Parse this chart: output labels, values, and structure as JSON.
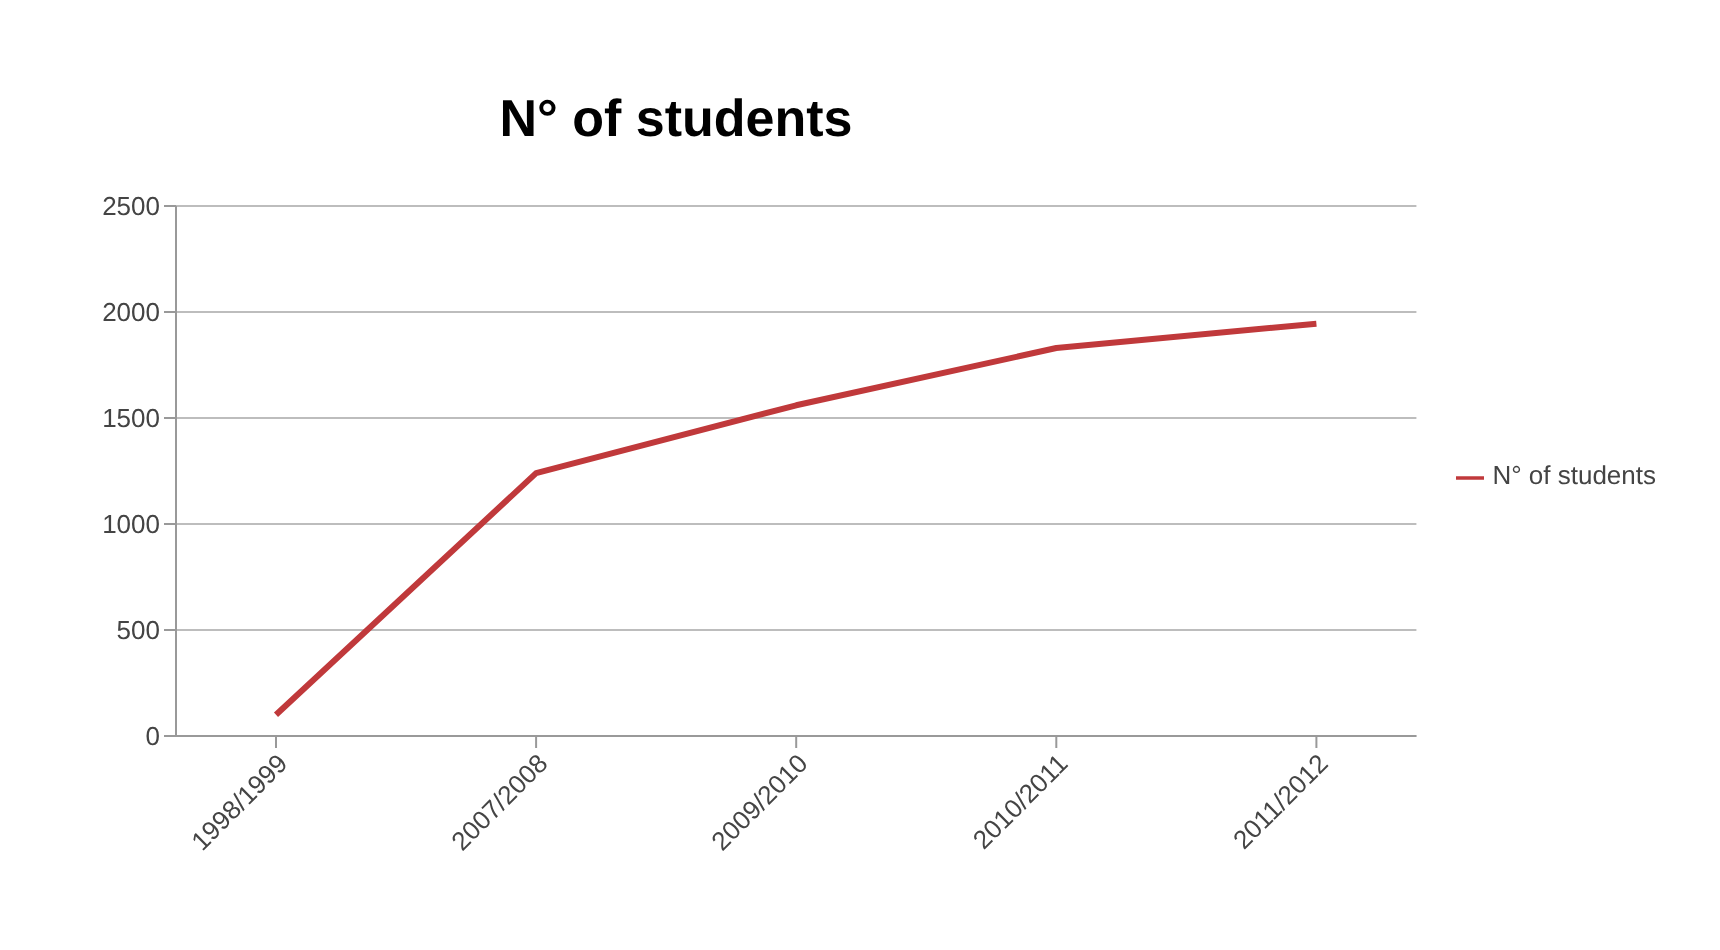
{
  "chart_data": {
    "type": "line",
    "title": "N° of students",
    "categories": [
      "1998/1999",
      "2007/2008",
      "2009/2010",
      "2010/2011",
      "2011/2012"
    ],
    "series": [
      {
        "name": "N° of students",
        "color": "#c0393b",
        "values": [
          100,
          1240,
          1560,
          1830,
          1945
        ]
      }
    ],
    "ylim": [
      0,
      2500
    ],
    "yticks": [
      0,
      500,
      1000,
      1500,
      2000,
      2500
    ],
    "grid": "y",
    "legend": "right",
    "marker": "none"
  }
}
